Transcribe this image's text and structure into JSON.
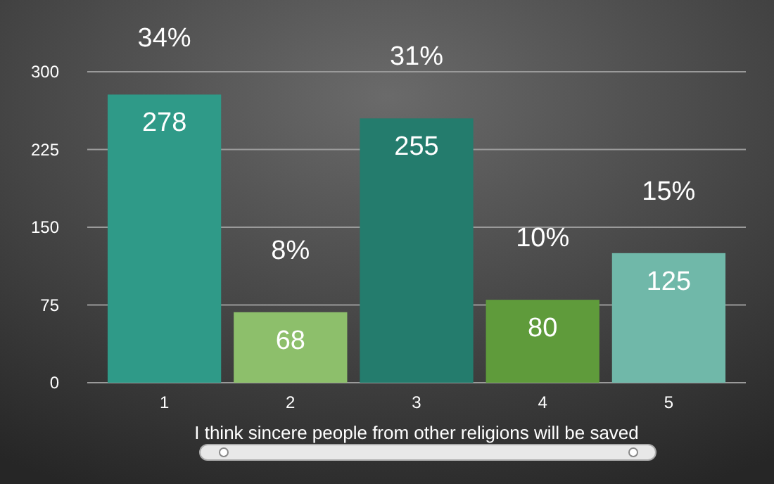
{
  "chart_data": {
    "type": "bar",
    "categories": [
      "1",
      "2",
      "3",
      "4",
      "5"
    ],
    "values": [
      278,
      68,
      255,
      80,
      125
    ],
    "colors": [
      "#2f9a88",
      "#8dbf6b",
      "#247c6d",
      "#5f9b3b",
      "#70b8a9"
    ],
    "xlabel": "I think sincere people from other religions will be saved",
    "ylim": [
      0,
      300
    ],
    "yticks": [
      0,
      75,
      150,
      225,
      300
    ],
    "grid": "y",
    "data_labels": true,
    "annotations": [
      "34%",
      "8%",
      "31%",
      "10%",
      "15%"
    ]
  }
}
